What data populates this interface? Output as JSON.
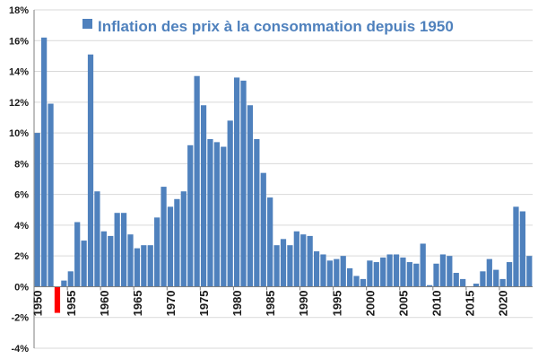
{
  "chart_data": {
    "type": "bar",
    "title": "",
    "xlabel": "",
    "ylabel": "",
    "legend": {
      "label": "Inflation des prix à la consommation depuis 1950",
      "position": "top"
    },
    "ylim": [
      -4,
      18
    ],
    "y_ticks": [
      -4,
      -2,
      0,
      2,
      4,
      6,
      8,
      10,
      12,
      14,
      16,
      18
    ],
    "y_tick_format": "percent",
    "x_tick_labels": [
      "1950",
      "1955",
      "1960",
      "1965",
      "1970",
      "1975",
      "1980",
      "1985",
      "1990",
      "1995",
      "2000",
      "2005",
      "2010",
      "2015",
      "2020"
    ],
    "grid": true,
    "colors": {
      "bar": "#4f81bd",
      "negative_bar": "#ff0000",
      "grid": "#d9d9d9",
      "text": "#1a1a1a"
    },
    "x": [
      1950,
      1951,
      1952,
      1953,
      1954,
      1955,
      1956,
      1957,
      1958,
      1959,
      1960,
      1961,
      1962,
      1963,
      1964,
      1965,
      1966,
      1967,
      1968,
      1969,
      1970,
      1971,
      1972,
      1973,
      1974,
      1975,
      1976,
      1977,
      1978,
      1979,
      1980,
      1981,
      1982,
      1983,
      1984,
      1985,
      1986,
      1987,
      1988,
      1989,
      1990,
      1991,
      1992,
      1993,
      1994,
      1995,
      1996,
      1997,
      1998,
      1999,
      2000,
      2001,
      2002,
      2003,
      2004,
      2005,
      2006,
      2007,
      2008,
      2009,
      2010,
      2011,
      2012,
      2013,
      2014,
      2015,
      2016,
      2017,
      2018,
      2019,
      2020,
      2021,
      2022,
      2023,
      2024
    ],
    "values": [
      10.0,
      16.2,
      11.9,
      -1.7,
      0.4,
      1.0,
      4.2,
      3.0,
      15.1,
      6.2,
      3.6,
      3.3,
      4.8,
      4.8,
      3.4,
      2.5,
      2.7,
      2.7,
      4.5,
      6.5,
      5.2,
      5.7,
      6.2,
      9.2,
      13.7,
      11.8,
      9.6,
      9.4,
      9.1,
      10.8,
      13.6,
      13.4,
      11.8,
      9.6,
      7.4,
      5.8,
      2.7,
      3.1,
      2.7,
      3.6,
      3.4,
      3.3,
      2.3,
      2.1,
      1.7,
      1.8,
      2.0,
      1.2,
      0.7,
      0.5,
      1.7,
      1.6,
      1.9,
      2.1,
      2.1,
      1.9,
      1.6,
      1.5,
      2.8,
      0.1,
      1.5,
      2.1,
      2.0,
      0.9,
      0.5,
      0.0,
      0.2,
      1.0,
      1.8,
      1.1,
      0.5,
      1.6,
      5.2,
      4.9,
      2.0
    ]
  }
}
